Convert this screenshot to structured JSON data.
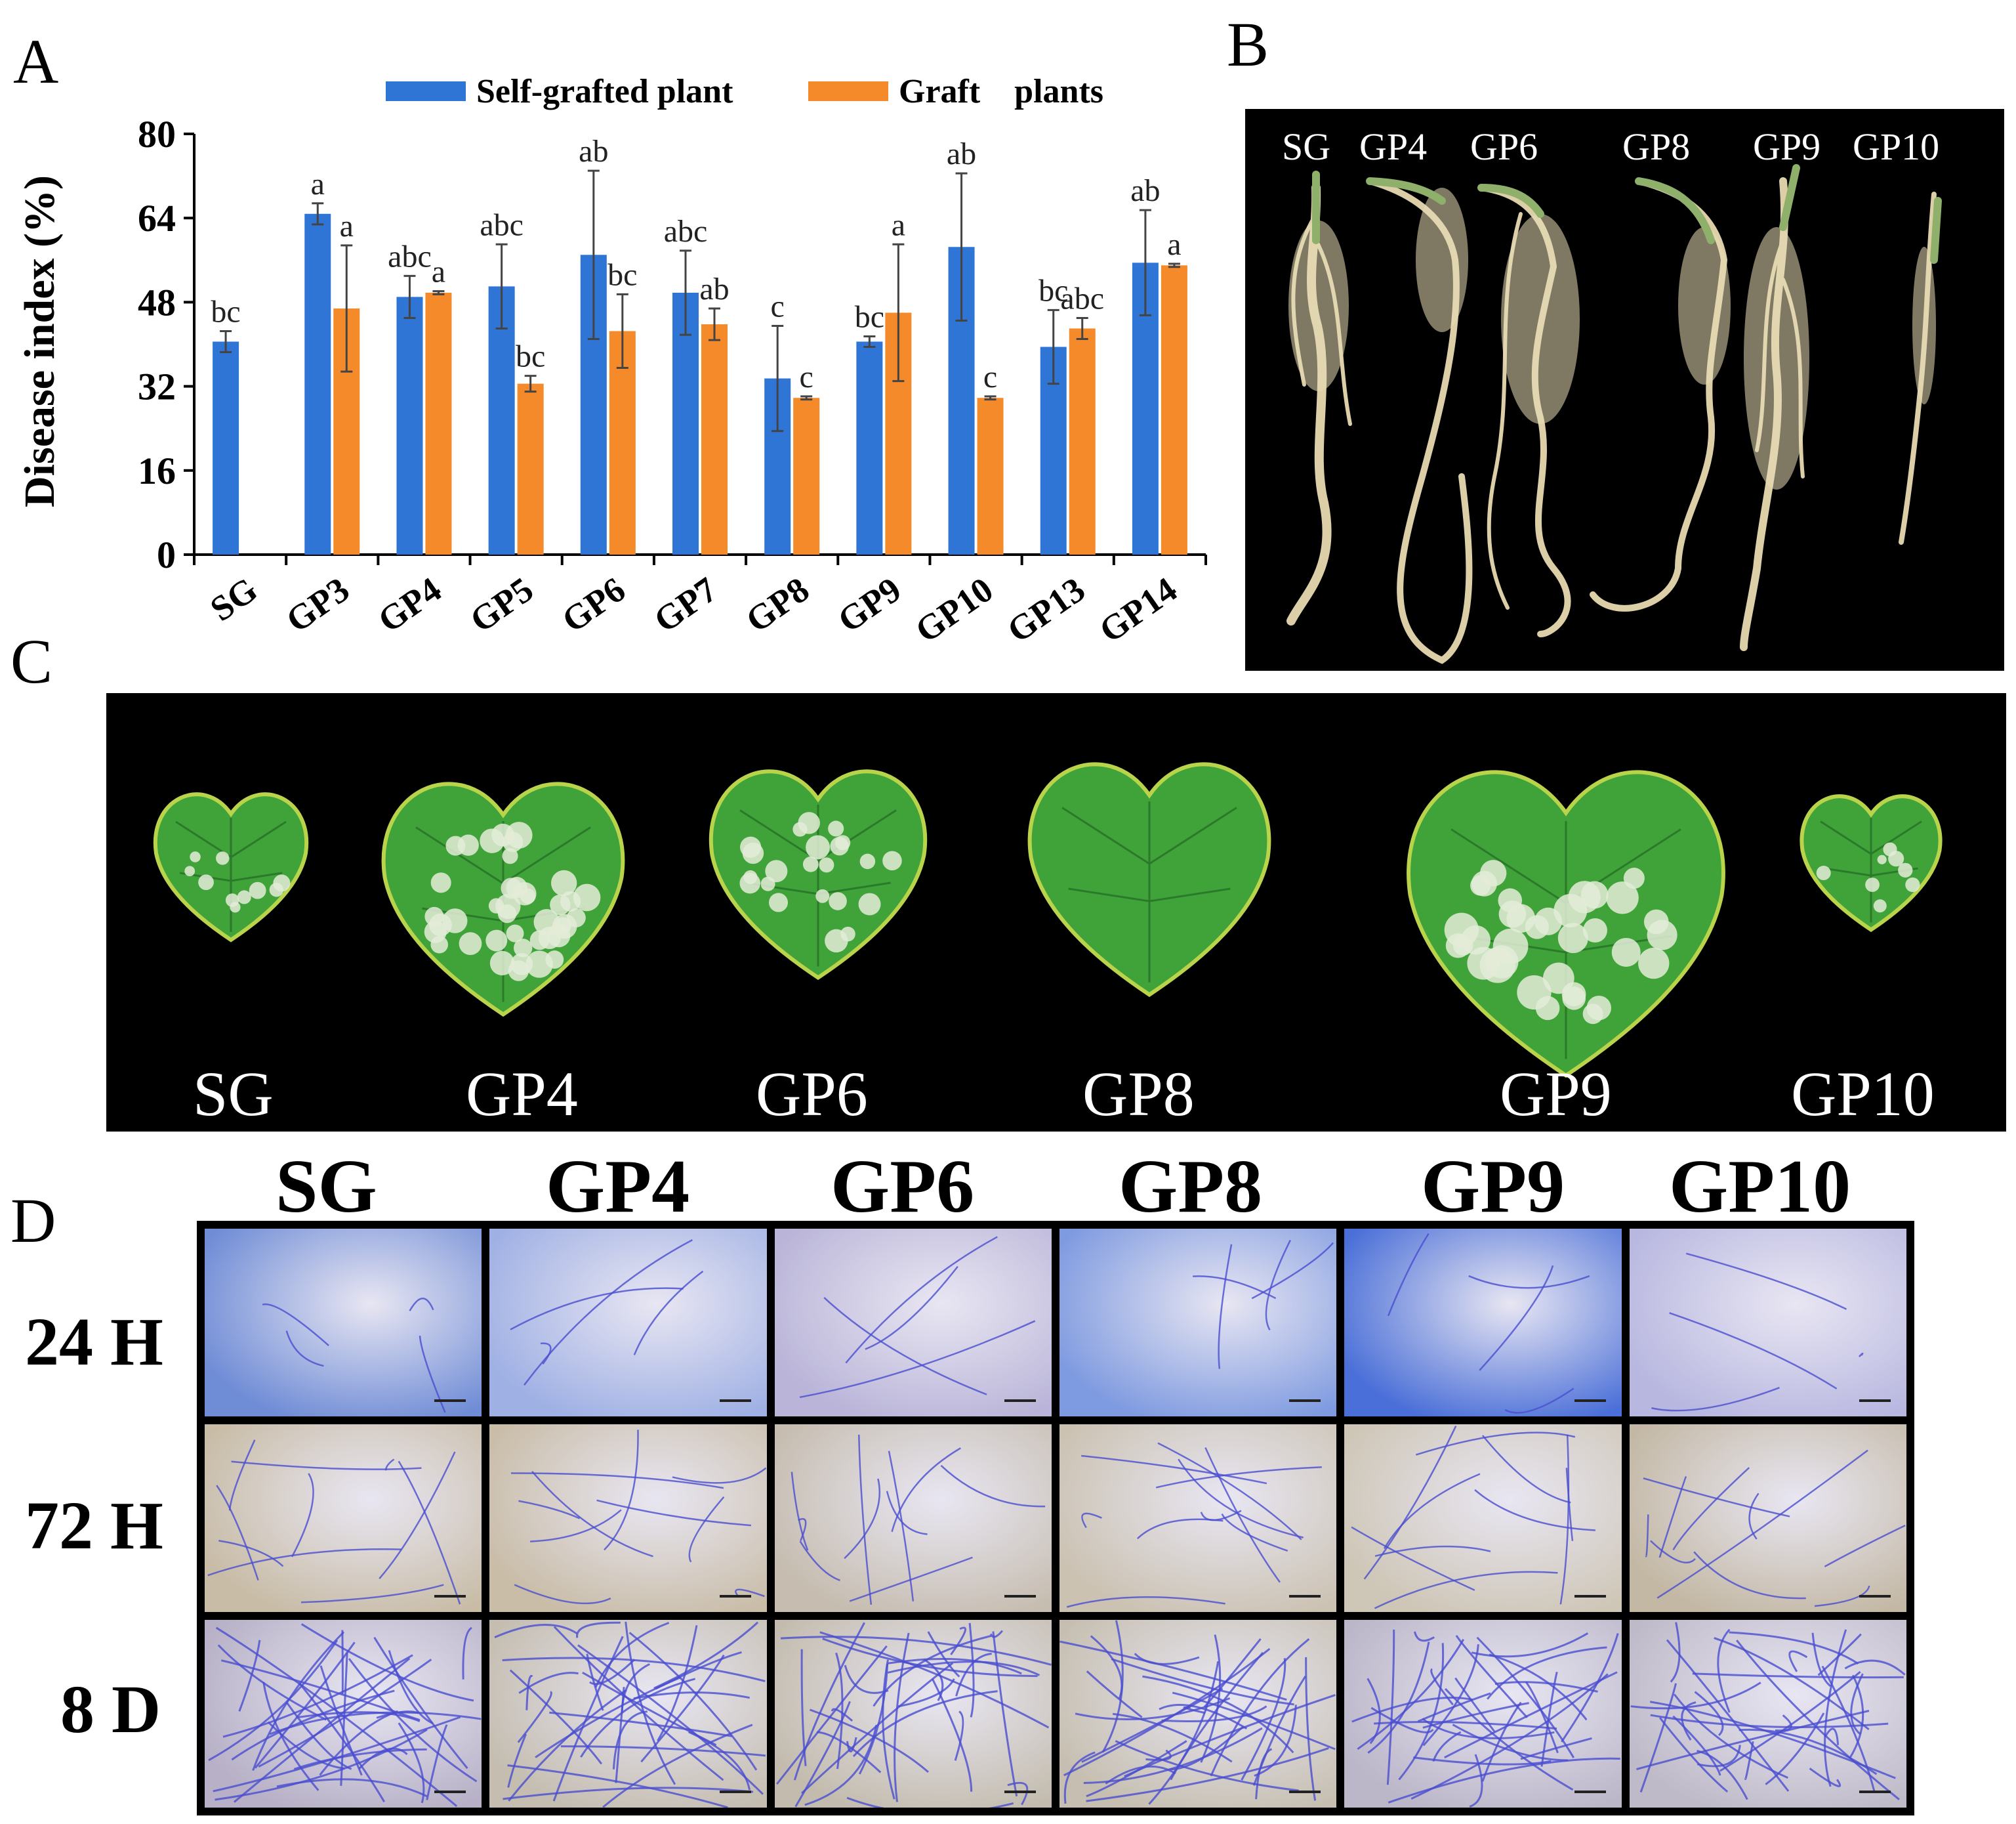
{
  "panels": {
    "a": "A",
    "b": "B",
    "c": "C",
    "d": "D"
  },
  "chart_data": {
    "type": "bar",
    "ylabel": "Disease index (%)",
    "ylim": [
      0,
      80
    ],
    "yticks": [
      "0",
      "16",
      "32",
      "48",
      "64",
      "80"
    ],
    "categories": [
      "SG",
      "GP3",
      "GP4",
      "GP5",
      "GP6",
      "GP7",
      "GP8",
      "GP9",
      "GP10",
      "GP13",
      "GP14"
    ],
    "legend_position": "top",
    "series": [
      {
        "name": "Self-grafted plant",
        "color": "#2e75d6",
        "values": [
          40.5,
          64.8,
          49,
          51,
          57,
          49.8,
          33.5,
          40.5,
          58.5,
          39.5,
          55.5
        ],
        "errors": [
          2,
          2,
          4,
          8,
          16,
          8,
          10,
          1,
          14,
          7,
          10
        ],
        "letters": [
          "bc",
          "a",
          "abc",
          "abc",
          "ab",
          "abc",
          "c",
          "bc",
          "ab",
          "bc",
          "ab"
        ]
      },
      {
        "name": "Graft    plants",
        "color": "#f58a2a",
        "values": [
          null,
          46.8,
          49.8,
          32.5,
          42.5,
          43.8,
          29.8,
          46,
          29.8,
          43,
          55
        ],
        "errors": [
          null,
          12,
          0.3,
          1.5,
          7,
          3,
          0.3,
          13,
          0.3,
          2,
          0.3
        ],
        "letters": [
          "",
          "a",
          "a",
          "bc",
          "bc",
          "ab",
          "c",
          "a",
          "c",
          "abc",
          "a"
        ]
      }
    ]
  },
  "panel_b": {
    "labels": [
      "SG",
      "GP4",
      "GP6",
      "GP8",
      "GP9",
      "GP10"
    ]
  },
  "panel_c": {
    "labels": [
      "SG",
      "GP4",
      "GP6",
      "GP8",
      "GP9",
      "GP10"
    ]
  },
  "panel_d": {
    "columns": [
      "SG",
      "GP4",
      "GP6",
      "GP8",
      "GP9",
      "GP10"
    ],
    "rows": [
      "24 H",
      "72 H",
      "8 D"
    ]
  }
}
